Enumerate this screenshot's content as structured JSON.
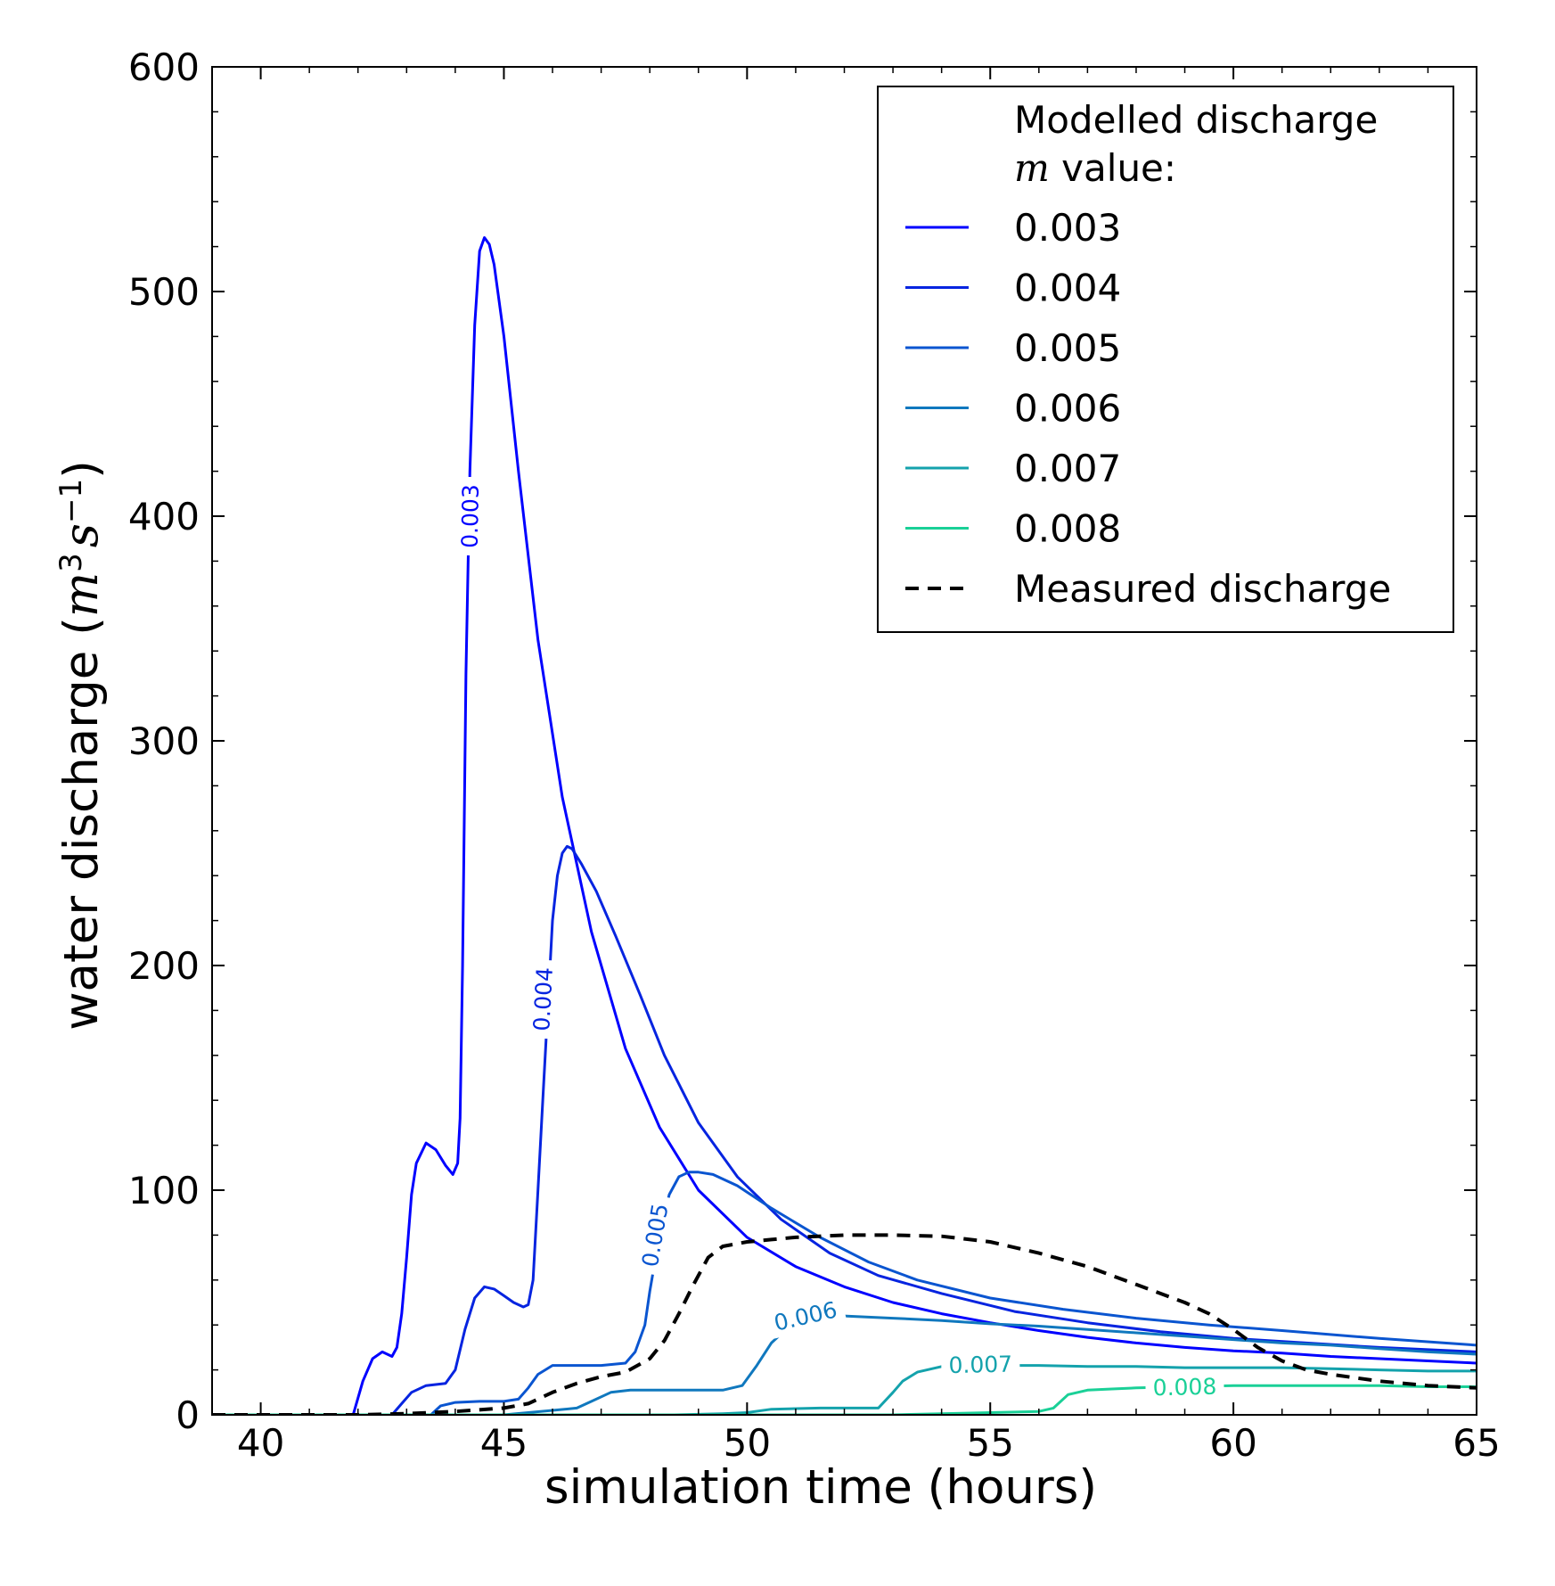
{
  "chart_data": {
    "type": "line",
    "xlabel": "simulation time (hours)",
    "ylabel": {
      "prefix": "water discharge (",
      "m": "m",
      "m_exp": "3",
      "s": "s",
      "s_exp": "−1",
      "suffix": ")"
    },
    "xlim": [
      39,
      65
    ],
    "ylim": [
      0,
      600
    ],
    "x_ticks": [
      "40",
      "45",
      "50",
      "55",
      "60",
      "65"
    ],
    "y_ticks": [
      "0",
      "100",
      "200",
      "300",
      "400",
      "500",
      "600"
    ],
    "grid": false,
    "legend": {
      "position": "top-right",
      "title_line1": "Modelled discharge",
      "title_line2_var": "m",
      "title_line2_rest": " value:"
    },
    "series": [
      {
        "name": "0.003",
        "label": "0.003",
        "color": "#0000ff",
        "dashed": false,
        "label_at": [
          44.3,
          400
        ],
        "points": [
          [
            39,
            0
          ],
          [
            41.9,
            0
          ],
          [
            42.1,
            15
          ],
          [
            42.3,
            25
          ],
          [
            42.5,
            28
          ],
          [
            42.7,
            26
          ],
          [
            42.8,
            30
          ],
          [
            42.9,
            45
          ],
          [
            43.0,
            70
          ],
          [
            43.1,
            98
          ],
          [
            43.2,
            112
          ],
          [
            43.4,
            121
          ],
          [
            43.6,
            118
          ],
          [
            43.8,
            111
          ],
          [
            43.95,
            107
          ],
          [
            44.05,
            112
          ],
          [
            44.1,
            132
          ],
          [
            44.15,
            200
          ],
          [
            44.22,
            330
          ],
          [
            44.3,
            420
          ],
          [
            44.4,
            485
          ],
          [
            44.5,
            518
          ],
          [
            44.6,
            524
          ],
          [
            44.7,
            521
          ],
          [
            44.8,
            512
          ],
          [
            45.0,
            480
          ],
          [
            45.3,
            420
          ],
          [
            45.7,
            345
          ],
          [
            46.2,
            275
          ],
          [
            46.8,
            215
          ],
          [
            47.5,
            163
          ],
          [
            48.2,
            128
          ],
          [
            49.0,
            100
          ],
          [
            50.0,
            79
          ],
          [
            51.0,
            66
          ],
          [
            52.0,
            57
          ],
          [
            53.0,
            50
          ],
          [
            54.0,
            45
          ],
          [
            55.0,
            41
          ],
          [
            56.0,
            37.5
          ],
          [
            57.0,
            34.5
          ],
          [
            58.0,
            32
          ],
          [
            59.0,
            30
          ],
          [
            60.0,
            28.5
          ],
          [
            61.0,
            27.5
          ],
          [
            62.0,
            26
          ],
          [
            63.0,
            25
          ],
          [
            64.0,
            24
          ],
          [
            65.0,
            23
          ]
        ]
      },
      {
        "name": "0.004",
        "label": "0.004",
        "color": "#0624e0",
        "dashed": false,
        "label_at": [
          45.8,
          185
        ],
        "points": [
          [
            39,
            0
          ],
          [
            42.7,
            0
          ],
          [
            42.9,
            5
          ],
          [
            43.1,
            10
          ],
          [
            43.4,
            13
          ],
          [
            43.8,
            14
          ],
          [
            44.0,
            20
          ],
          [
            44.2,
            38
          ],
          [
            44.4,
            52
          ],
          [
            44.6,
            57
          ],
          [
            44.8,
            56
          ],
          [
            45.0,
            53
          ],
          [
            45.2,
            50
          ],
          [
            45.4,
            48
          ],
          [
            45.5,
            49
          ],
          [
            45.6,
            60
          ],
          [
            45.7,
            100
          ],
          [
            45.8,
            140
          ],
          [
            45.9,
            180
          ],
          [
            46.0,
            220
          ],
          [
            46.1,
            240
          ],
          [
            46.2,
            250
          ],
          [
            46.3,
            253
          ],
          [
            46.4,
            252
          ],
          [
            46.6,
            245
          ],
          [
            46.9,
            233
          ],
          [
            47.3,
            213
          ],
          [
            47.8,
            187
          ],
          [
            48.3,
            160
          ],
          [
            49.0,
            130
          ],
          [
            49.8,
            106
          ],
          [
            50.7,
            87
          ],
          [
            51.7,
            72
          ],
          [
            52.7,
            62
          ],
          [
            54.0,
            54
          ],
          [
            55.5,
            46
          ],
          [
            57.0,
            41
          ],
          [
            58.5,
            37
          ],
          [
            60.0,
            34
          ],
          [
            61.5,
            32
          ],
          [
            63.0,
            30
          ],
          [
            65.0,
            28
          ]
        ]
      },
      {
        "name": "0.005",
        "label": "0.005",
        "color": "#0a55d0",
        "dashed": false,
        "label_at": [
          48.1,
          80
        ],
        "points": [
          [
            39,
            0
          ],
          [
            43.5,
            0
          ],
          [
            43.7,
            4
          ],
          [
            44.0,
            5.5
          ],
          [
            44.5,
            6
          ],
          [
            45.0,
            6
          ],
          [
            45.3,
            7
          ],
          [
            45.5,
            12
          ],
          [
            45.7,
            18
          ],
          [
            46.0,
            22
          ],
          [
            46.5,
            22
          ],
          [
            47.0,
            22
          ],
          [
            47.5,
            23
          ],
          [
            47.7,
            28
          ],
          [
            47.9,
            40
          ],
          [
            48.0,
            55
          ],
          [
            48.2,
            80
          ],
          [
            48.4,
            98
          ],
          [
            48.6,
            106
          ],
          [
            48.8,
            108
          ],
          [
            49.0,
            108
          ],
          [
            49.3,
            107
          ],
          [
            49.8,
            102
          ],
          [
            50.5,
            92
          ],
          [
            51.5,
            79
          ],
          [
            52.5,
            68
          ],
          [
            53.5,
            60
          ],
          [
            55.0,
            52
          ],
          [
            56.5,
            47
          ],
          [
            58.0,
            43
          ],
          [
            59.5,
            40
          ],
          [
            61.0,
            37.5
          ],
          [
            63.0,
            34
          ],
          [
            65.0,
            31
          ]
        ]
      },
      {
        "name": "0.006",
        "label": "0.006",
        "color": "#1078be",
        "dashed": false,
        "label_at": [
          51.2,
          44
        ],
        "points": [
          [
            39,
            0
          ],
          [
            45.0,
            0
          ],
          [
            45.5,
            1
          ],
          [
            46.0,
            2
          ],
          [
            46.5,
            3
          ],
          [
            46.8,
            6
          ],
          [
            47.2,
            10
          ],
          [
            47.6,
            11
          ],
          [
            48.5,
            11
          ],
          [
            49.5,
            11
          ],
          [
            49.9,
            13
          ],
          [
            50.2,
            22
          ],
          [
            50.5,
            32
          ],
          [
            50.8,
            38
          ],
          [
            51.1,
            41
          ],
          [
            51.5,
            43
          ],
          [
            52.0,
            44
          ],
          [
            53.0,
            43
          ],
          [
            54.0,
            42
          ],
          [
            55.0,
            40.5
          ],
          [
            56.0,
            39.5
          ],
          [
            57.0,
            38
          ],
          [
            58.0,
            36.5
          ],
          [
            59.0,
            35
          ],
          [
            60.0,
            33.5
          ],
          [
            61.0,
            32
          ],
          [
            62.0,
            31
          ],
          [
            63.0,
            29.5
          ],
          [
            64.0,
            28
          ],
          [
            65.0,
            27
          ]
        ]
      },
      {
        "name": "0.007",
        "label": "0.007",
        "color": "#14a2ac",
        "dashed": false,
        "label_at": [
          54.8,
          22.5
        ],
        "points": [
          [
            39,
            0
          ],
          [
            48.5,
            0
          ],
          [
            49.5,
            0.5
          ],
          [
            50.0,
            1
          ],
          [
            50.5,
            2.5
          ],
          [
            51.5,
            3
          ],
          [
            52.7,
            3
          ],
          [
            53.0,
            10
          ],
          [
            53.2,
            15
          ],
          [
            53.5,
            19
          ],
          [
            54.0,
            21.5
          ],
          [
            55.0,
            22
          ],
          [
            56.0,
            22
          ],
          [
            57.0,
            21.5
          ],
          [
            58.0,
            21.5
          ],
          [
            59.0,
            21
          ],
          [
            60.0,
            21
          ],
          [
            61.0,
            21
          ],
          [
            62.0,
            20.5
          ],
          [
            63.0,
            20
          ],
          [
            64.0,
            19.5
          ],
          [
            65.0,
            19.5
          ]
        ]
      },
      {
        "name": "0.008",
        "label": "0.008",
        "color": "#1ad097",
        "dashed": false,
        "label_at": [
          59.0,
          12.5
        ],
        "points": [
          [
            39,
            0
          ],
          [
            53.0,
            0
          ],
          [
            54.0,
            0.5
          ],
          [
            55.0,
            1
          ],
          [
            56.0,
            1.5
          ],
          [
            56.3,
            3
          ],
          [
            56.6,
            9
          ],
          [
            57.0,
            11
          ],
          [
            57.5,
            11.5
          ],
          [
            58.0,
            12
          ],
          [
            59.0,
            12.5
          ],
          [
            60.0,
            13
          ],
          [
            61.0,
            13
          ],
          [
            62.0,
            13
          ],
          [
            63.0,
            13
          ],
          [
            64.0,
            12.5
          ],
          [
            65.0,
            12.5
          ]
        ]
      },
      {
        "name": "Measured discharge",
        "color": "#000000",
        "dashed": true,
        "points": [
          [
            39,
            0
          ],
          [
            42.0,
            0
          ],
          [
            43.0,
            0.5
          ],
          [
            44.0,
            1.5
          ],
          [
            45.0,
            3
          ],
          [
            45.5,
            5
          ],
          [
            46.0,
            10
          ],
          [
            46.5,
            14
          ],
          [
            47.0,
            17
          ],
          [
            47.5,
            19
          ],
          [
            48.0,
            25
          ],
          [
            48.3,
            33
          ],
          [
            48.6,
            45
          ],
          [
            48.9,
            58
          ],
          [
            49.2,
            70
          ],
          [
            49.5,
            75
          ],
          [
            50.0,
            77
          ],
          [
            50.5,
            78
          ],
          [
            51.0,
            79
          ],
          [
            52.0,
            80
          ],
          [
            53.0,
            80
          ],
          [
            54.0,
            79.5
          ],
          [
            55.0,
            77
          ],
          [
            56.0,
            72
          ],
          [
            57.0,
            66
          ],
          [
            58.0,
            58
          ],
          [
            59.0,
            50
          ],
          [
            59.5,
            45
          ],
          [
            60.0,
            38
          ],
          [
            60.5,
            30
          ],
          [
            61.0,
            24
          ],
          [
            61.5,
            20
          ],
          [
            62.0,
            18
          ],
          [
            63.0,
            15
          ],
          [
            64.0,
            13
          ],
          [
            65.0,
            12
          ]
        ]
      }
    ]
  }
}
